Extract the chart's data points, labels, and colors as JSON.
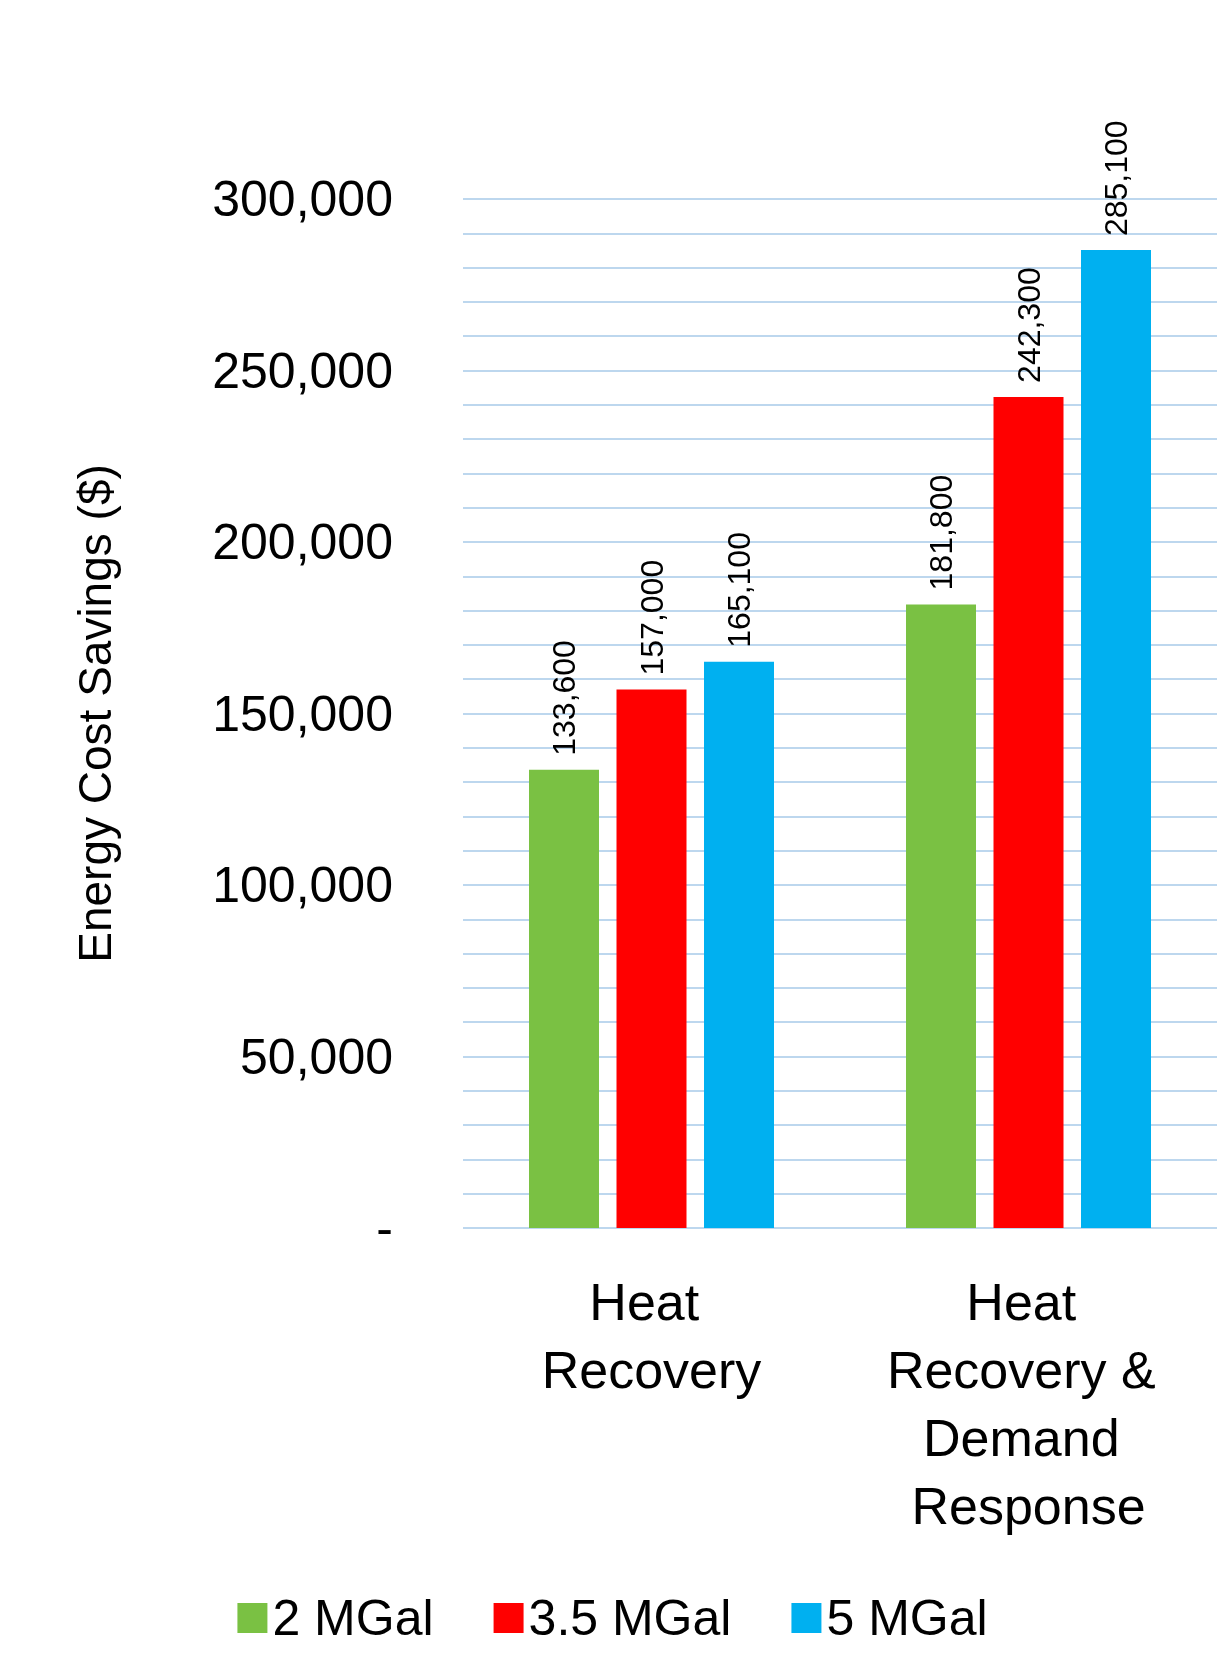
{
  "chart_data": {
    "type": "bar",
    "ylabel": "Energy Cost Savings ($)",
    "categories": [
      "Heat Recovery",
      "Heat Recovery & Demand Response"
    ],
    "series": [
      {
        "name": "2 MGal",
        "color": "#7ac143",
        "values": [
          133600,
          181800
        ],
        "value_labels": [
          "133,600",
          "181,800"
        ]
      },
      {
        "name": "3.5 MGal",
        "color": "#ff0000",
        "values": [
          157000,
          242300
        ],
        "value_labels": [
          "157,000",
          "242,300"
        ]
      },
      {
        "name": "5 MGal",
        "color": "#00b0f0",
        "values": [
          165100,
          285100
        ],
        "value_labels": [
          "165,100",
          "285,100"
        ]
      }
    ],
    "ylim": [
      0,
      300000
    ],
    "yticks": [
      {
        "value": 0,
        "label": "-"
      },
      {
        "value": 10000,
        "label": null
      },
      {
        "value": 20000,
        "label": null
      },
      {
        "value": 30000,
        "label": null
      },
      {
        "value": 40000,
        "label": null
      },
      {
        "value": 50000,
        "label": "50,000"
      },
      {
        "value": 60000,
        "label": null
      },
      {
        "value": 70000,
        "label": null
      },
      {
        "value": 80000,
        "label": null
      },
      {
        "value": 90000,
        "label": null
      },
      {
        "value": 100000,
        "label": "100,000"
      },
      {
        "value": 110000,
        "label": null
      },
      {
        "value": 120000,
        "label": null
      },
      {
        "value": 130000,
        "label": null
      },
      {
        "value": 140000,
        "label": null
      },
      {
        "value": 150000,
        "label": "150,000"
      },
      {
        "value": 160000,
        "label": null
      },
      {
        "value": 170000,
        "label": null
      },
      {
        "value": 180000,
        "label": null
      },
      {
        "value": 190000,
        "label": null
      },
      {
        "value": 200000,
        "label": "200,000"
      },
      {
        "value": 210000,
        "label": null
      },
      {
        "value": 220000,
        "label": null
      },
      {
        "value": 230000,
        "label": null
      },
      {
        "value": 240000,
        "label": null
      },
      {
        "value": 250000,
        "label": "250,000"
      },
      {
        "value": 260000,
        "label": null
      },
      {
        "value": 270000,
        "label": null
      },
      {
        "value": 280000,
        "label": null
      },
      {
        "value": 290000,
        "label": null
      },
      {
        "value": 300000,
        "label": "300,000"
      }
    ],
    "grid": "y",
    "legend": "bottom"
  }
}
